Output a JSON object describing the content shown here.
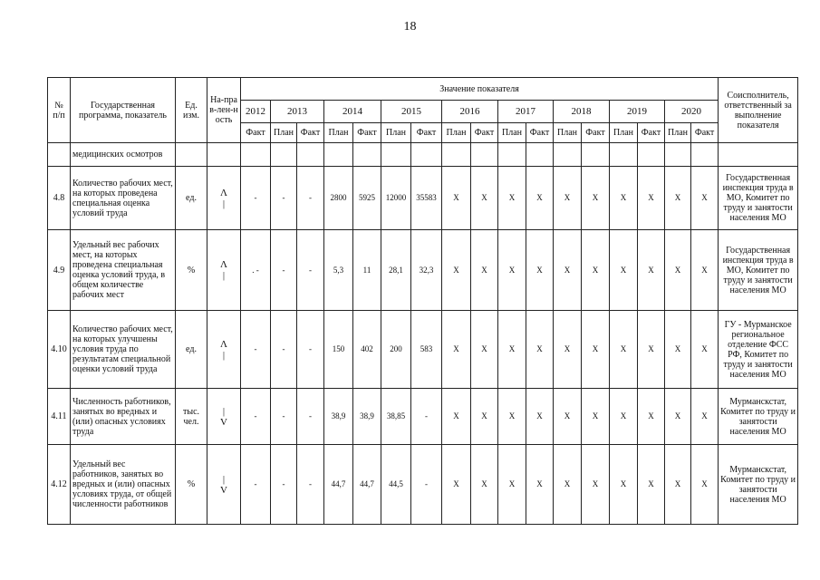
{
  "page_number": "18",
  "header": {
    "number": "№ п/п",
    "program": "Государственная программа, показатель",
    "unit": "Ед. изм.",
    "direction": "На-прав-лен-ность",
    "values_title": "Значение показателя",
    "executor": "Соисполнитель, ответственный за выполнение показателя",
    "years": [
      "2012",
      "2013",
      "2014",
      "2015",
      "2016",
      "2017",
      "2018",
      "2019",
      "2020"
    ],
    "subheaders": [
      "Факт",
      "План",
      "Факт",
      "План",
      "Факт",
      "План",
      "Факт",
      "План",
      "Факт",
      "План",
      "Факт",
      "План",
      "Факт",
      "План",
      "Факт",
      "План",
      "Факт"
    ]
  },
  "continuation": "медицинских осмотров",
  "rows": [
    {
      "number": "4.8",
      "name": "Количество рабочих мест, на которых проведена специальная оценка условий труда",
      "unit": "ед.",
      "direction": [
        "Λ",
        "|"
      ],
      "values": [
        "-",
        "-",
        "-",
        "2800",
        "5925",
        "12000",
        "35583",
        "Х",
        "Х",
        "Х",
        "Х",
        "Х",
        "Х",
        "Х",
        "Х",
        "Х",
        "Х"
      ],
      "executor": "Государственная инспекция труда в МО, Комитет по труду и занятости населения МО"
    },
    {
      "number": "4.9",
      "name": "Удельный вес рабочих мест, на которых проведена специальная оценка условий труда, в общем количестве рабочих мест",
      "unit": "%",
      "direction": [
        "Λ",
        "|"
      ],
      "values": [
        ". -",
        "-",
        "-",
        "5,3",
        "11",
        "28,1",
        "32,3",
        "Х",
        "Х",
        "Х",
        "Х",
        "Х",
        "Х",
        "Х",
        "Х",
        "Х",
        "Х"
      ],
      "executor": "Государственная инспекция труда в МО, Комитет по труду и занятости населения МО"
    },
    {
      "number": "4.10",
      "name": "Количество рабочих мест, на которых улучшены условия труда по результатам специальной оценки условий труда",
      "unit": "ед.",
      "direction": [
        "Λ",
        "|"
      ],
      "values": [
        "-",
        "-",
        "-",
        "150",
        "402",
        "200",
        "583",
        "Х",
        "Х",
        "Х",
        "Х",
        "Х",
        "Х",
        "Х",
        "Х",
        "Х",
        "Х"
      ],
      "executor": "ГУ - Мурманское региональное отделение ФСС РФ, Комитет по труду и занятости населения МО"
    },
    {
      "number": "4.11",
      "name": "Численность работников, занятых во вредных и (или) опасных условиях труда",
      "unit": "тыс. чел.",
      "direction": [
        "|",
        "V"
      ],
      "values": [
        "-",
        "-",
        "-",
        "38,9",
        "38,9",
        "38,85",
        "-",
        "Х",
        "Х",
        "Х",
        "Х",
        "Х",
        "Х",
        "Х",
        "Х",
        "Х",
        "Х"
      ],
      "executor": "Мурманскстат, Комитет по труду и занятости населения МО"
    },
    {
      "number": "4.12",
      "name": "Удельный вес работников, занятых во вредных и (или) опасных условиях труда, от общей численности работников",
      "unit": "%",
      "direction": [
        "|",
        "V"
      ],
      "values": [
        "-",
        "-",
        "-",
        "44,7",
        "44,7",
        "44,5",
        "-",
        "Х",
        "Х",
        "Х",
        "Х",
        "Х",
        "Х",
        "Х",
        "Х",
        "Х",
        "Х"
      ],
      "executor": "Мурманскстат, Комитет по труду и занятости населения МО"
    }
  ]
}
